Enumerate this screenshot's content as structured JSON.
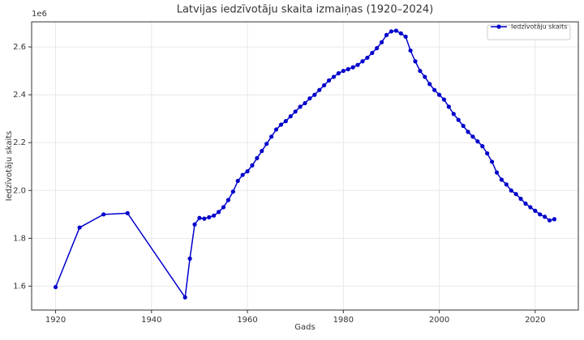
{
  "chart_data": {
    "type": "line",
    "title": "Latvijas iedzīvotāju skaita izmaiņas (1920–2024)",
    "x_label": "Gads",
    "y_label": "Iedzīvotāju skaits",
    "y_offset_label": "1e6",
    "x": [
      1920,
      1925,
      1930,
      1935,
      1947,
      1948,
      1949,
      1950,
      1951,
      1952,
      1953,
      1954,
      1955,
      1956,
      1957,
      1958,
      1959,
      1960,
      1961,
      1962,
      1963,
      1964,
      1965,
      1966,
      1967,
      1968,
      1969,
      1970,
      1971,
      1972,
      1973,
      1974,
      1975,
      1976,
      1977,
      1978,
      1979,
      1980,
      1981,
      1982,
      1983,
      1984,
      1985,
      1986,
      1987,
      1988,
      1989,
      1990,
      1991,
      1992,
      1993,
      1994,
      1995,
      1996,
      1997,
      1998,
      1999,
      2000,
      2001,
      2002,
      2003,
      2004,
      2005,
      2006,
      2007,
      2008,
      2009,
      2010,
      2011,
      2012,
      2013,
      2014,
      2015,
      2016,
      2017,
      2018,
      2019,
      2020,
      2021,
      2022,
      2023,
      2024
    ],
    "series": [
      {
        "name": "Iedzīvotāju skaits",
        "color": "#0000cc",
        "values": [
          1.596,
          1.845,
          1.9,
          1.905,
          1.553,
          1.715,
          1.858,
          1.885,
          1.882,
          1.888,
          1.895,
          1.91,
          1.93,
          1.96,
          1.995,
          2.04,
          2.065,
          2.08,
          2.105,
          2.135,
          2.165,
          2.195,
          2.225,
          2.255,
          2.275,
          2.29,
          2.31,
          2.33,
          2.35,
          2.365,
          2.385,
          2.4,
          2.42,
          2.44,
          2.46,
          2.475,
          2.49,
          2.5,
          2.507,
          2.515,
          2.525,
          2.54,
          2.555,
          2.575,
          2.595,
          2.62,
          2.65,
          2.665,
          2.668,
          2.657,
          2.643,
          2.585,
          2.54,
          2.5,
          2.475,
          2.445,
          2.42,
          2.4,
          2.38,
          2.35,
          2.32,
          2.295,
          2.27,
          2.245,
          2.225,
          2.205,
          2.185,
          2.155,
          2.12,
          2.075,
          2.045,
          2.025,
          2.0,
          1.985,
          1.965,
          1.945,
          1.93,
          1.915,
          1.9,
          1.89,
          1.875,
          1.88
        ]
      }
    ],
    "xlim": [
      1915,
      2029
    ],
    "ylim": [
      1.5,
      2.705
    ],
    "xticks": [
      1920,
      1940,
      1960,
      1980,
      2000,
      2020
    ],
    "yticks": [
      1.6,
      1.8,
      {
        "value": 2.0,
        "label": "2.0"
      },
      2.2,
      2.4,
      2.6
    ],
    "grid": true,
    "legend": "upper right"
  }
}
